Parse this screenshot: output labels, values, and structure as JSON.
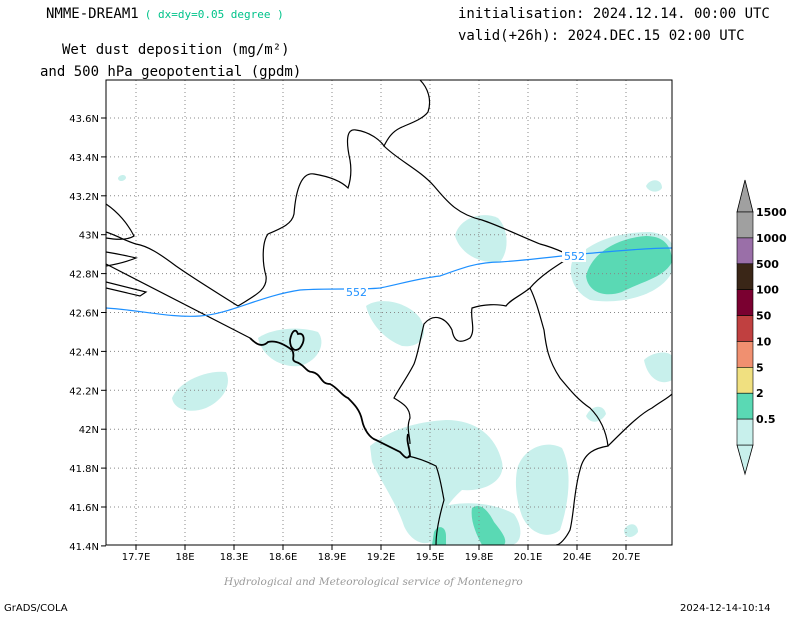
{
  "header": {
    "model": "NMME-DREAM1",
    "resolution": "( dx=dy=0.05 degree )",
    "initialisation": "initialisation: 2024.12.14. 00:00 UTC",
    "valid": "valid(+26h): 2024.DEC.15 02:00 UTC",
    "title_line1": "Wet dust deposition (mg/m²)",
    "title_line2": "and 500 hPa geopotential (gpdm)"
  },
  "map": {
    "lon_ticks": [
      "17.7E",
      "18E",
      "18.3E",
      "18.6E",
      "18.9E",
      "19.2E",
      "19.5E",
      "19.8E",
      "20.1E",
      "20.4E",
      "20.7E"
    ],
    "lat_ticks": [
      "43.6N",
      "43.4N",
      "43.2N",
      "43N",
      "42.8N",
      "42.6N",
      "42.4N",
      "42.2N",
      "42N",
      "41.8N",
      "41.6N",
      "41.4N"
    ],
    "contour_labels": [
      "552",
      "552"
    ],
    "contour_color": "#1e90ff",
    "fill_colors": {
      "light": "#c8f0ec",
      "medium": "#5ad9b4"
    }
  },
  "legend": {
    "labels": [
      "1500",
      "1000",
      "500",
      "100",
      "50",
      "10",
      "5",
      "2",
      "0.5"
    ],
    "colors": [
      "#a0a0a0",
      "#9a6fa8",
      "#3a2617",
      "#7a0030",
      "#c04040",
      "#f09070",
      "#f0e080",
      "#5ad9b4",
      "#c8f0ec"
    ]
  },
  "footer": {
    "credit": "Hydrological and Meteorological service of Montenegro",
    "software": "GrADS/COLA",
    "timestamp": "2024-12-14-10:14"
  }
}
